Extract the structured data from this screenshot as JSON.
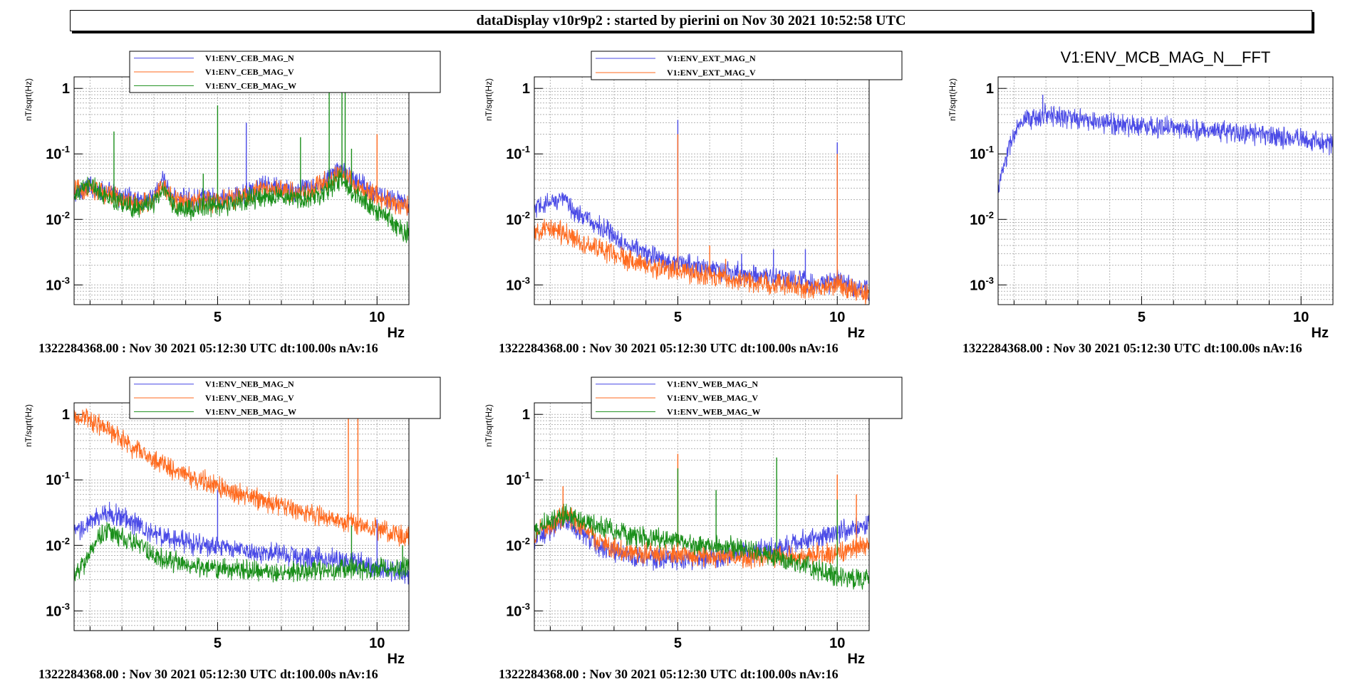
{
  "header": {
    "title": "dataDisplay v10r9p2 : started by pierini on Nov 30 2021 10:52:58 UTC"
  },
  "colors": {
    "N": "#4a4ae6",
    "V": "#ff6a1e",
    "W": "#1a8f1a",
    "grid": "#b4b4b4"
  },
  "chart_data": [
    {
      "type": "line",
      "id": "ceb",
      "title": "",
      "xlabel": "Hz",
      "ylabel": "nT/sqrt(Hz)",
      "xlim": [
        0.5,
        11
      ],
      "ylim": [
        0.0005,
        1.5
      ],
      "yscale": "log",
      "grid": true,
      "legend": "top",
      "footer": "1322284368.00 : Nov 30 2021 05:12:30 UTC dt:100.00s nAv:16",
      "xticks": [
        5,
        10
      ],
      "yticks": [
        1,
        0.1,
        0.01,
        0.001
      ],
      "series": [
        {
          "name": "V1:ENV_CEB_MAG_N",
          "color_key": "N",
          "x": [
            0.5,
            1,
            1.5,
            2,
            2.5,
            3,
            3.3,
            3.6,
            4,
            4.5,
            5,
            5.5,
            6,
            6.5,
            7,
            7.5,
            8,
            8.5,
            8.8,
            9,
            9.5,
            10,
            10.5,
            11
          ],
          "y": [
            0.025,
            0.032,
            0.026,
            0.022,
            0.02,
            0.022,
            0.04,
            0.022,
            0.02,
            0.021,
            0.02,
            0.022,
            0.026,
            0.032,
            0.03,
            0.027,
            0.03,
            0.045,
            0.06,
            0.05,
            0.035,
            0.025,
            0.02,
            0.017
          ]
        },
        {
          "name": "V1:ENV_CEB_MAG_V",
          "color_key": "V",
          "x": [
            0.5,
            1,
            1.5,
            2,
            2.5,
            3,
            3.3,
            3.6,
            4,
            4.5,
            5,
            5.5,
            6,
            6.5,
            7,
            7.5,
            8,
            8.5,
            8.8,
            9,
            9.5,
            10,
            10.5,
            11
          ],
          "y": [
            0.028,
            0.03,
            0.024,
            0.02,
            0.018,
            0.02,
            0.035,
            0.02,
            0.018,
            0.019,
            0.019,
            0.02,
            0.024,
            0.03,
            0.028,
            0.025,
            0.028,
            0.04,
            0.05,
            0.045,
            0.03,
            0.022,
            0.018,
            0.015
          ]
        },
        {
          "name": "V1:ENV_CEB_MAG_W",
          "color_key": "W",
          "x": [
            0.5,
            1,
            1.5,
            2,
            2.5,
            3,
            3.3,
            3.6,
            4,
            4.5,
            5,
            5.5,
            6,
            6.5,
            7,
            7.5,
            8,
            8.5,
            8.8,
            9,
            9.5,
            10,
            10.5,
            11
          ],
          "y": [
            0.022,
            0.035,
            0.022,
            0.018,
            0.015,
            0.017,
            0.03,
            0.016,
            0.014,
            0.016,
            0.016,
            0.017,
            0.02,
            0.022,
            0.022,
            0.02,
            0.022,
            0.03,
            0.04,
            0.032,
            0.02,
            0.013,
            0.009,
            0.006
          ]
        }
      ],
      "spikes": [
        {
          "x": 1.75,
          "y": 0.22,
          "color_key": "W"
        },
        {
          "x": 4.55,
          "y": 0.05,
          "color_key": "W"
        },
        {
          "x": 5.0,
          "y": 0.55,
          "color_key": "W"
        },
        {
          "x": 5.9,
          "y": 0.3,
          "color_key": "N"
        },
        {
          "x": 7.6,
          "y": 0.18,
          "color_key": "W"
        },
        {
          "x": 8.5,
          "y": 1.4,
          "color_key": "W"
        },
        {
          "x": 8.9,
          "y": 1.4,
          "color_key": "W"
        },
        {
          "x": 9.0,
          "y": 1.4,
          "color_key": "W"
        },
        {
          "x": 9.2,
          "y": 0.12,
          "color_key": "W"
        },
        {
          "x": 10.0,
          "y": 0.2,
          "color_key": "V"
        }
      ]
    },
    {
      "type": "line",
      "id": "ext",
      "title": "",
      "xlabel": "Hz",
      "ylabel": "nT/sqrt(Hz)",
      "xlim": [
        0.5,
        11
      ],
      "ylim": [
        0.0005,
        1.5
      ],
      "yscale": "log",
      "grid": true,
      "legend": "top",
      "footer": "1322284368.00 : Nov 30 2021 05:12:30 UTC dt:100.00s nAv:16",
      "xticks": [
        5,
        10
      ],
      "yticks": [
        1,
        0.1,
        0.01,
        0.001
      ],
      "series": [
        {
          "name": "V1:ENV_EXT_MAG_N",
          "color_key": "N",
          "x": [
            0.5,
            1,
            1.3,
            1.8,
            2.5,
            3,
            3.5,
            4,
            4.5,
            5,
            5.5,
            6,
            6.5,
            7,
            7.5,
            8,
            8.5,
            9,
            9.5,
            10,
            10.5,
            11
          ],
          "y": [
            0.014,
            0.018,
            0.022,
            0.013,
            0.008,
            0.0055,
            0.004,
            0.003,
            0.0025,
            0.0022,
            0.002,
            0.0017,
            0.0016,
            0.0015,
            0.0014,
            0.0013,
            0.0012,
            0.0011,
            0.001,
            0.0012,
            0.0009,
            0.0008
          ]
        },
        {
          "name": "V1:ENV_EXT_MAG_V",
          "color_key": "V",
          "x": [
            0.5,
            1,
            1.5,
            2,
            2.5,
            3,
            3.5,
            4,
            4.5,
            5,
            5.5,
            6,
            6.5,
            7,
            7.5,
            8,
            8.5,
            9,
            9.5,
            10,
            10.5,
            11
          ],
          "y": [
            0.006,
            0.007,
            0.006,
            0.0045,
            0.0035,
            0.003,
            0.0024,
            0.002,
            0.0018,
            0.0016,
            0.0015,
            0.0014,
            0.0013,
            0.0012,
            0.0011,
            0.001,
            0.001,
            0.0009,
            0.0009,
            0.001,
            0.0008,
            0.0007
          ]
        }
      ],
      "spikes": [
        {
          "x": 5.0,
          "y": 0.33,
          "color_key": "N"
        },
        {
          "x": 5.0,
          "y": 0.2,
          "color_key": "V"
        },
        {
          "x": 6.0,
          "y": 0.004,
          "color_key": "V"
        },
        {
          "x": 6.5,
          "y": 0.0025,
          "color_key": "V"
        },
        {
          "x": 7.0,
          "y": 0.003,
          "color_key": "N"
        },
        {
          "x": 8.0,
          "y": 0.0035,
          "color_key": "N"
        },
        {
          "x": 9.0,
          "y": 0.0035,
          "color_key": "N"
        },
        {
          "x": 10.0,
          "y": 0.15,
          "color_key": "N"
        },
        {
          "x": 10.0,
          "y": 0.1,
          "color_key": "V"
        }
      ]
    },
    {
      "type": "line",
      "id": "mcb",
      "title": "V1:ENV_MCB_MAG_N__FFT",
      "xlabel": "Hz",
      "ylabel": "nT/sqrt(Hz)",
      "xlim": [
        0.5,
        11
      ],
      "ylim": [
        0.0005,
        1.5
      ],
      "yscale": "log",
      "grid": true,
      "legend": "none",
      "footer": "1322284368.00 : Nov 30 2021 05:12:30 UTC dt:100.00s nAv:16",
      "xticks": [
        5,
        10
      ],
      "yticks": [
        1,
        0.1,
        0.01,
        0.001
      ],
      "series": [
        {
          "name": "",
          "color_key": "N",
          "x": [
            0.5,
            0.7,
            0.9,
            1.1,
            1.4,
            1.8,
            2.2,
            2.5,
            3,
            4,
            5,
            6,
            7,
            8,
            9,
            10,
            11
          ],
          "y": [
            0.03,
            0.07,
            0.15,
            0.25,
            0.32,
            0.38,
            0.4,
            0.38,
            0.33,
            0.29,
            0.27,
            0.25,
            0.23,
            0.21,
            0.19,
            0.17,
            0.14
          ]
        }
      ],
      "spikes": [
        {
          "x": 1.9,
          "y": 0.8,
          "color_key": "N"
        }
      ]
    },
    {
      "type": "line",
      "id": "neb",
      "title": "",
      "xlabel": "Hz",
      "ylabel": "nT/sqrt(Hz)",
      "xlim": [
        0.5,
        11
      ],
      "ylim": [
        0.0005,
        1.5
      ],
      "yscale": "log",
      "grid": true,
      "legend": "top",
      "footer": "1322284368.00 : Nov 30 2021 05:12:30 UTC dt:100.00s nAv:16",
      "xticks": [
        5,
        10
      ],
      "yticks": [
        1,
        0.1,
        0.01,
        0.001
      ],
      "series": [
        {
          "name": "V1:ENV_NEB_MAG_N",
          "color_key": "N",
          "x": [
            0.5,
            1,
            1.5,
            2,
            2.5,
            3,
            4,
            5,
            6,
            7,
            8,
            9,
            10,
            11
          ],
          "y": [
            0.015,
            0.022,
            0.032,
            0.028,
            0.02,
            0.015,
            0.011,
            0.0095,
            0.008,
            0.0072,
            0.0065,
            0.0058,
            0.0048,
            0.0035
          ]
        },
        {
          "name": "V1:ENV_NEB_MAG_V",
          "color_key": "V",
          "x": [
            0.5,
            1,
            1.5,
            2,
            2.5,
            3,
            4,
            5,
            6,
            7,
            8,
            9,
            10,
            11
          ],
          "y": [
            0.9,
            0.85,
            0.6,
            0.4,
            0.28,
            0.2,
            0.12,
            0.08,
            0.055,
            0.04,
            0.03,
            0.023,
            0.018,
            0.013
          ]
        },
        {
          "name": "V1:ENV_NEB_MAG_W",
          "color_key": "W",
          "x": [
            0.5,
            0.8,
            1.2,
            1.6,
            2,
            2.5,
            3,
            4,
            5,
            6,
            7,
            8,
            9,
            10,
            11
          ],
          "y": [
            0.004,
            0.005,
            0.012,
            0.017,
            0.014,
            0.01,
            0.007,
            0.005,
            0.0045,
            0.004,
            0.0038,
            0.004,
            0.0042,
            0.0045,
            0.0045
          ]
        }
      ],
      "spikes": [
        {
          "x": 5.0,
          "y": 0.07,
          "color_key": "N"
        },
        {
          "x": 9.1,
          "y": 1.4,
          "color_key": "V"
        },
        {
          "x": 9.4,
          "y": 1.4,
          "color_key": "V"
        },
        {
          "x": 9.2,
          "y": 0.02,
          "color_key": "W"
        },
        {
          "x": 10.0,
          "y": 0.025,
          "color_key": "N"
        },
        {
          "x": 10.8,
          "y": 0.01,
          "color_key": "W"
        }
      ]
    },
    {
      "type": "line",
      "id": "web",
      "title": "",
      "xlabel": "Hz",
      "ylabel": "nT/sqrt(Hz)",
      "xlim": [
        0.5,
        11
      ],
      "ylim": [
        0.0005,
        1.5
      ],
      "yscale": "log",
      "grid": true,
      "legend": "top",
      "footer": "1322284368.00 : Nov 30 2021 05:12:30 UTC dt:100.00s nAv:16",
      "xticks": [
        5,
        10
      ],
      "yticks": [
        1,
        0.1,
        0.01,
        0.001
      ],
      "series": [
        {
          "name": "V1:ENV_WEB_MAG_N",
          "color_key": "N",
          "x": [
            0.5,
            1,
            1.5,
            2,
            2.5,
            3,
            4,
            5,
            6,
            7,
            8,
            9,
            10,
            11
          ],
          "y": [
            0.012,
            0.018,
            0.025,
            0.015,
            0.01,
            0.008,
            0.0065,
            0.006,
            0.0065,
            0.0075,
            0.009,
            0.012,
            0.016,
            0.022
          ]
        },
        {
          "name": "V1:ENV_WEB_MAG_V",
          "color_key": "V",
          "x": [
            0.5,
            1,
            1.5,
            2,
            2.5,
            3,
            4,
            5,
            6,
            7,
            8,
            9,
            10,
            11
          ],
          "y": [
            0.015,
            0.02,
            0.03,
            0.018,
            0.012,
            0.009,
            0.0075,
            0.007,
            0.0068,
            0.0065,
            0.0065,
            0.007,
            0.008,
            0.01
          ]
        },
        {
          "name": "V1:ENV_WEB_MAG_W",
          "color_key": "W",
          "x": [
            0.5,
            1,
            1.5,
            2,
            2.5,
            3,
            4,
            5,
            6,
            7,
            8,
            9,
            10,
            11
          ],
          "y": [
            0.015,
            0.025,
            0.03,
            0.022,
            0.02,
            0.016,
            0.013,
            0.011,
            0.01,
            0.009,
            0.007,
            0.005,
            0.0035,
            0.0028
          ]
        }
      ],
      "spikes": [
        {
          "x": 1.4,
          "y": 0.08,
          "color_key": "V"
        },
        {
          "x": 5.0,
          "y": 0.25,
          "color_key": "V"
        },
        {
          "x": 5.0,
          "y": 0.15,
          "color_key": "W"
        },
        {
          "x": 6.2,
          "y": 0.07,
          "color_key": "W"
        },
        {
          "x": 8.1,
          "y": 0.22,
          "color_key": "W"
        },
        {
          "x": 10.0,
          "y": 0.12,
          "color_key": "V"
        },
        {
          "x": 10.0,
          "y": 0.05,
          "color_key": "W"
        },
        {
          "x": 10.6,
          "y": 0.06,
          "color_key": "V"
        }
      ]
    }
  ]
}
